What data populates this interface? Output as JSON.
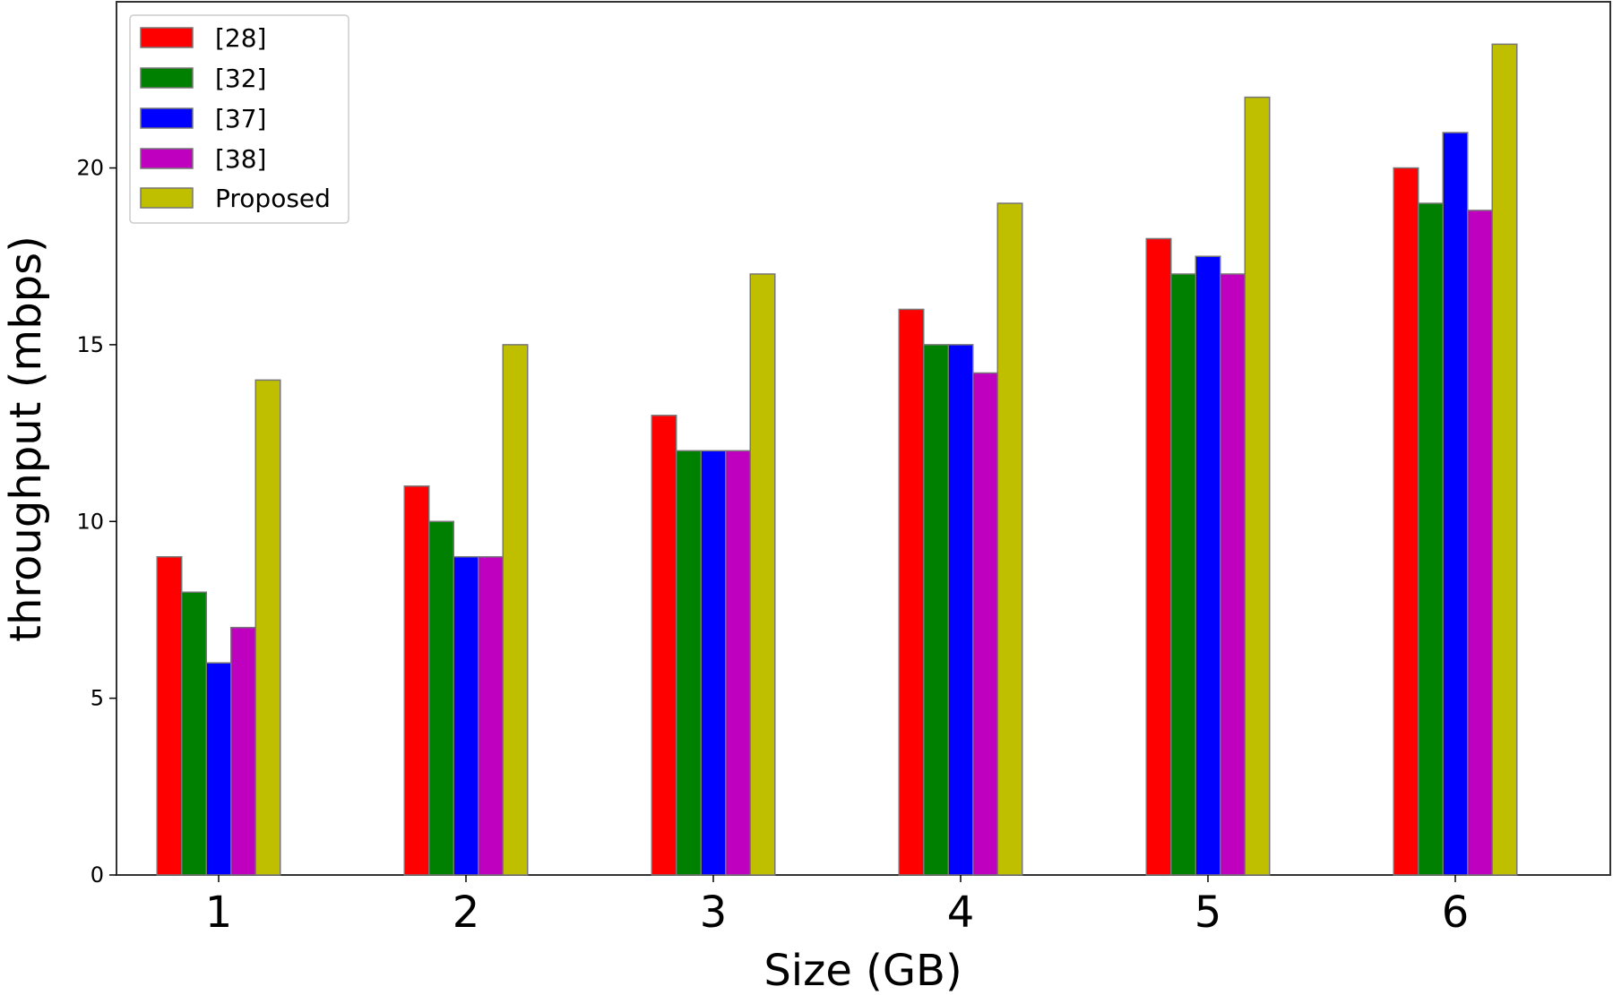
{
  "chart_data": {
    "type": "bar",
    "title": "",
    "xlabel": "Size (GB)",
    "ylabel": "throughput (mbps)",
    "categories": [
      "1",
      "2",
      "3",
      "4",
      "5",
      "6"
    ],
    "series": [
      {
        "name": "[28]",
        "color": "#ff0000",
        "values": [
          9,
          11,
          13,
          16,
          18,
          20
        ]
      },
      {
        "name": "[32]",
        "color": "#008000",
        "values": [
          8,
          10,
          12,
          15,
          17,
          19
        ]
      },
      {
        "name": "[37]",
        "color": "#0000ff",
        "values": [
          6,
          9,
          12,
          15,
          17.5,
          21
        ]
      },
      {
        "name": "[38]",
        "color": "#bf00bf",
        "values": [
          7,
          9,
          12,
          14.2,
          17,
          18.8
        ]
      },
      {
        "name": "Proposed",
        "color": "#bfbf00",
        "values": [
          14,
          15,
          17,
          19,
          22,
          23.5
        ]
      }
    ],
    "ylim": [
      0,
      24.7
    ],
    "yticks": [
      0,
      5,
      10,
      15,
      20
    ],
    "grid": false,
    "legend_position": "top-left"
  }
}
